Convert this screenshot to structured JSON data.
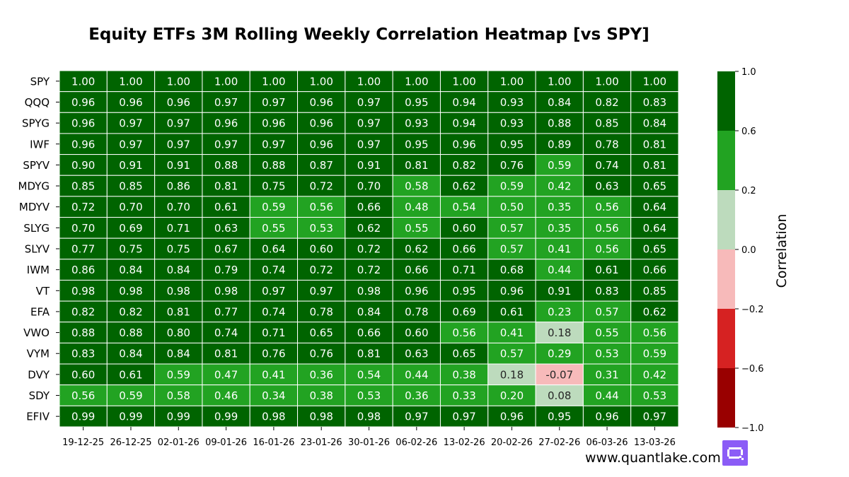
{
  "chart_data": {
    "type": "heatmap",
    "title": "Equity ETFs 3M Rolling Weekly Correlation Heatmap [vs SPY]",
    "rows": [
      "SPY",
      "QQQ",
      "SPYG",
      "IWF",
      "SPYV",
      "MDYG",
      "MDYV",
      "SLYG",
      "SLYV",
      "IWM",
      "VT",
      "EFA",
      "VWO",
      "VYM",
      "DVY",
      "SDY",
      "EFIV"
    ],
    "columns": [
      "19-12-25",
      "26-12-25",
      "02-01-26",
      "09-01-26",
      "16-01-26",
      "23-01-26",
      "30-01-26",
      "06-02-26",
      "13-02-26",
      "20-02-26",
      "27-02-26",
      "06-03-26",
      "13-03-26"
    ],
    "values": [
      [
        "1.00",
        "1.00",
        "1.00",
        "1.00",
        "1.00",
        "1.00",
        "1.00",
        "1.00",
        "1.00",
        "1.00",
        "1.00",
        "1.00",
        "1.00"
      ],
      [
        "0.96",
        "0.96",
        "0.96",
        "0.97",
        "0.97",
        "0.96",
        "0.97",
        "0.95",
        "0.94",
        "0.93",
        "0.84",
        "0.82",
        "0.83"
      ],
      [
        "0.96",
        "0.97",
        "0.97",
        "0.96",
        "0.96",
        "0.96",
        "0.97",
        "0.93",
        "0.94",
        "0.93",
        "0.88",
        "0.85",
        "0.84"
      ],
      [
        "0.96",
        "0.97",
        "0.97",
        "0.97",
        "0.97",
        "0.96",
        "0.97",
        "0.95",
        "0.96",
        "0.95",
        "0.89",
        "0.78",
        "0.81"
      ],
      [
        "0.90",
        "0.91",
        "0.91",
        "0.88",
        "0.88",
        "0.87",
        "0.91",
        "0.81",
        "0.82",
        "0.76",
        "0.59",
        "0.74",
        "0.81"
      ],
      [
        "0.85",
        "0.85",
        "0.86",
        "0.81",
        "0.75",
        "0.72",
        "0.70",
        "0.58",
        "0.62",
        "0.59",
        "0.42",
        "0.63",
        "0.65"
      ],
      [
        "0.72",
        "0.70",
        "0.70",
        "0.61",
        "0.59",
        "0.56",
        "0.66",
        "0.48",
        "0.54",
        "0.50",
        "0.35",
        "0.56",
        "0.64"
      ],
      [
        "0.70",
        "0.69",
        "0.71",
        "0.63",
        "0.55",
        "0.53",
        "0.62",
        "0.55",
        "0.60",
        "0.57",
        "0.35",
        "0.56",
        "0.64"
      ],
      [
        "0.77",
        "0.75",
        "0.75",
        "0.67",
        "0.64",
        "0.60",
        "0.72",
        "0.62",
        "0.66",
        "0.57",
        "0.41",
        "0.56",
        "0.65"
      ],
      [
        "0.86",
        "0.84",
        "0.84",
        "0.79",
        "0.74",
        "0.72",
        "0.72",
        "0.66",
        "0.71",
        "0.68",
        "0.44",
        "0.61",
        "0.66"
      ],
      [
        "0.98",
        "0.98",
        "0.98",
        "0.98",
        "0.97",
        "0.97",
        "0.98",
        "0.96",
        "0.95",
        "0.96",
        "0.91",
        "0.83",
        "0.85"
      ],
      [
        "0.82",
        "0.82",
        "0.81",
        "0.77",
        "0.74",
        "0.78",
        "0.84",
        "0.78",
        "0.69",
        "0.61",
        "0.23",
        "0.57",
        "0.62"
      ],
      [
        "0.88",
        "0.88",
        "0.80",
        "0.74",
        "0.71",
        "0.65",
        "0.66",
        "0.60",
        "0.56",
        "0.41",
        "0.18",
        "0.55",
        "0.56"
      ],
      [
        "0.83",
        "0.84",
        "0.84",
        "0.81",
        "0.76",
        "0.76",
        "0.81",
        "0.63",
        "0.65",
        "0.57",
        "0.29",
        "0.53",
        "0.59"
      ],
      [
        "0.60",
        "0.61",
        "0.59",
        "0.47",
        "0.41",
        "0.36",
        "0.54",
        "0.44",
        "0.38",
        "0.18",
        "-0.07",
        "0.31",
        "0.42"
      ],
      [
        "0.56",
        "0.59",
        "0.58",
        "0.46",
        "0.34",
        "0.38",
        "0.53",
        "0.36",
        "0.33",
        "0.20",
        "0.08",
        "0.44",
        "0.53"
      ],
      [
        "0.99",
        "0.99",
        "0.99",
        "0.99",
        "0.98",
        "0.98",
        "0.98",
        "0.97",
        "0.97",
        "0.96",
        "0.95",
        "0.96",
        "0.97"
      ]
    ],
    "colorbar": {
      "label": "Correlation",
      "range": [
        -1.0,
        1.0
      ],
      "boundaries": [
        -1.0,
        -0.6,
        -0.2,
        0.0,
        0.2,
        0.6,
        1.0
      ],
      "tick_labels": [
        "−1.0",
        "−0.6",
        "−0.2",
        "0.0",
        "0.2",
        "0.6",
        "1.0"
      ],
      "colors": [
        "#990000",
        "#d62222",
        "#f7baba",
        "#bddbbd",
        "#22a322",
        "#006400"
      ]
    },
    "text_colors": {
      "dark_cells": "#ffffff",
      "light_cells": "#262626"
    },
    "cell_border_color": "#ffffff"
  },
  "watermark": "www.quantlake.com",
  "logo": {
    "name": "quantlake-logo",
    "color": "#8b5cf6"
  }
}
